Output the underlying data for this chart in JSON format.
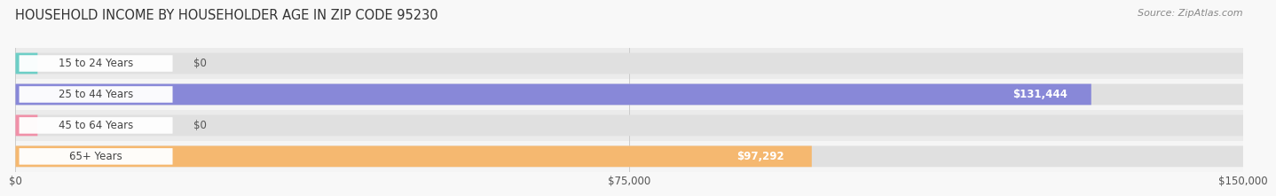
{
  "title": "HOUSEHOLD INCOME BY HOUSEHOLDER AGE IN ZIP CODE 95230",
  "source": "Source: ZipAtlas.com",
  "categories": [
    "15 to 24 Years",
    "25 to 44 Years",
    "45 to 64 Years",
    "65+ Years"
  ],
  "values": [
    0,
    131444,
    0,
    97292
  ],
  "bar_colors": [
    "#6dcec6",
    "#8888d8",
    "#f090a8",
    "#f5b870"
  ],
  "row_bg_colors": [
    "#ebebeb",
    "#f5f5f5",
    "#ebebeb",
    "#f5f5f5"
  ],
  "bar_bg_color": "#e0e0e0",
  "value_labels": [
    "$0",
    "$131,444",
    "$0",
    "$97,292"
  ],
  "x_ticks": [
    0,
    75000,
    150000
  ],
  "x_tick_labels": [
    "$0",
    "$75,000",
    "$150,000"
  ],
  "xlim": [
    0,
    150000
  ],
  "fig_bg_color": "#f8f8f8",
  "bar_height": 0.68,
  "title_fontsize": 10.5,
  "label_fontsize": 8.5,
  "value_fontsize": 8.5,
  "source_fontsize": 8,
  "tick_fontsize": 8.5
}
